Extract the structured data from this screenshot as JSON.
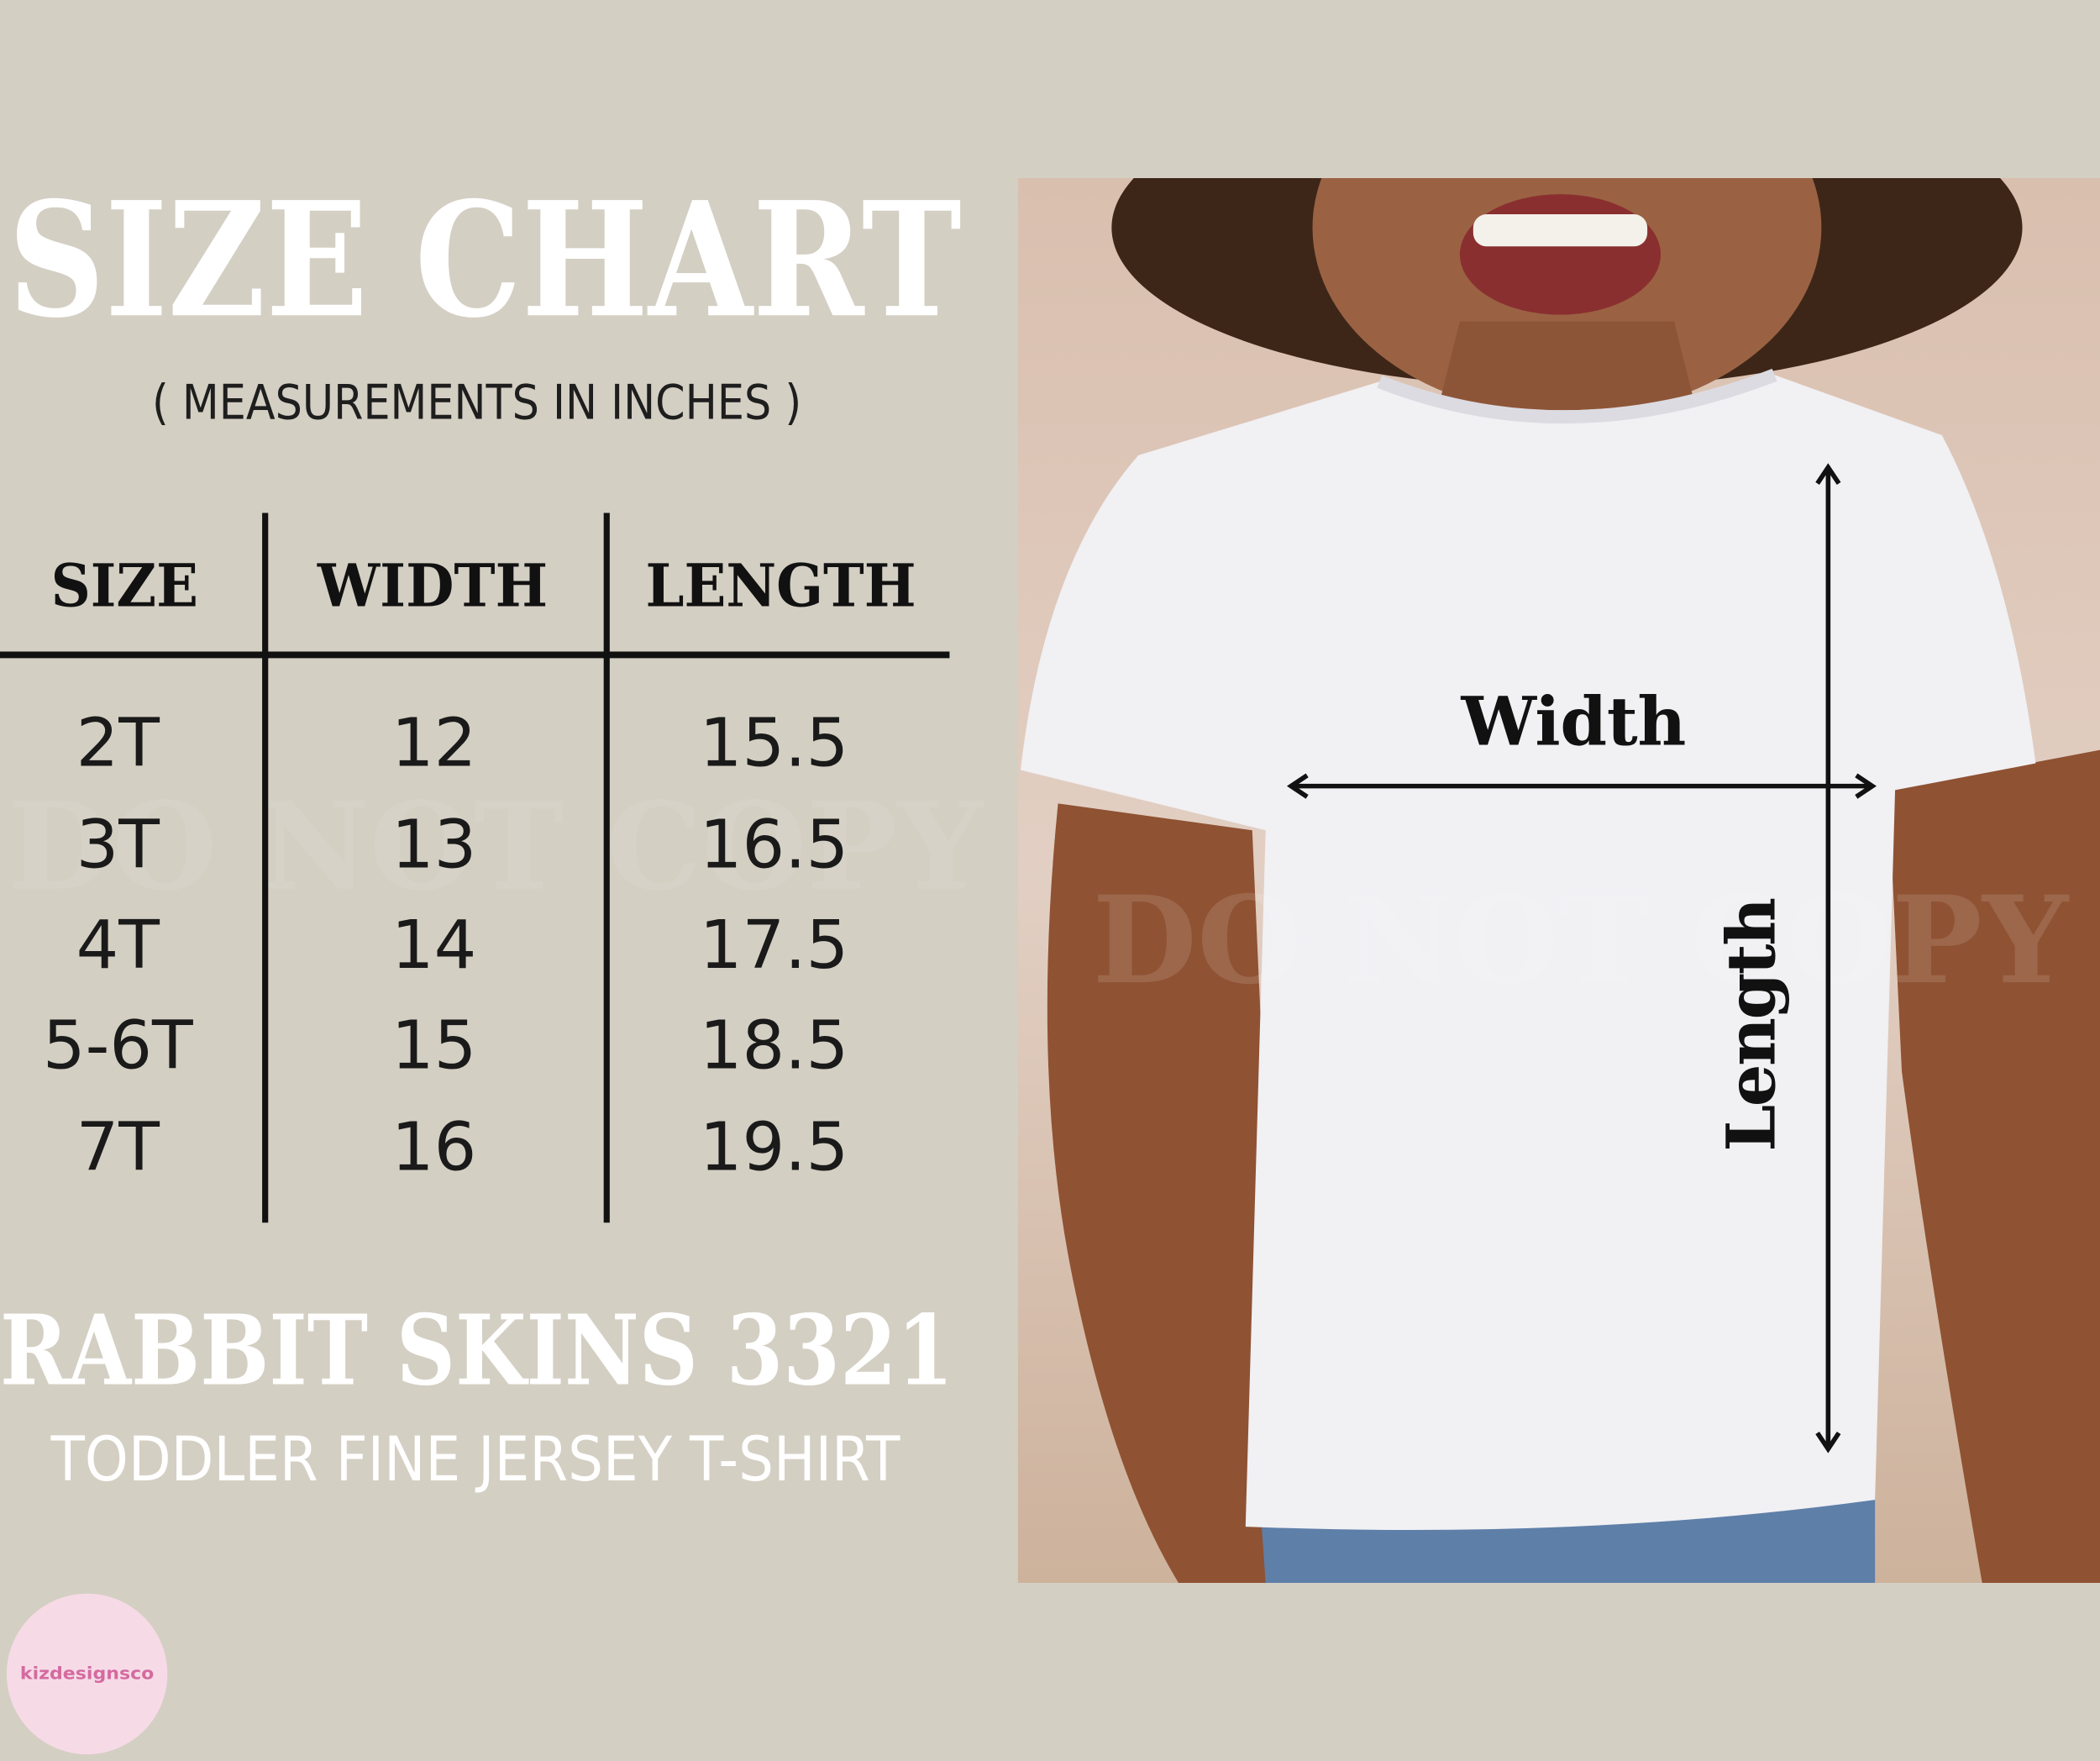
{
  "header": {
    "title": "SIZE CHART",
    "subtitle": "( MEASUREMENTS IN INCHES )"
  },
  "table": {
    "columns": [
      "SIZE",
      "WIDTH",
      "LENGTH"
    ],
    "rows": [
      [
        "2T",
        12,
        15.5
      ],
      [
        "3T",
        13,
        16.5
      ],
      [
        "4T",
        14,
        17.5
      ],
      [
        "5-6T",
        15,
        18.5
      ],
      [
        "7T",
        16,
        19.5
      ]
    ]
  },
  "product": {
    "brand": "RABBIT SKINS 3321",
    "description": "TODDLER FINE JERSEY T-SHIRT"
  },
  "photo": {
    "width_label": "Width",
    "length_label": "Length"
  },
  "watermark": "DO NOT COPY",
  "logo": "kizdesignsco"
}
